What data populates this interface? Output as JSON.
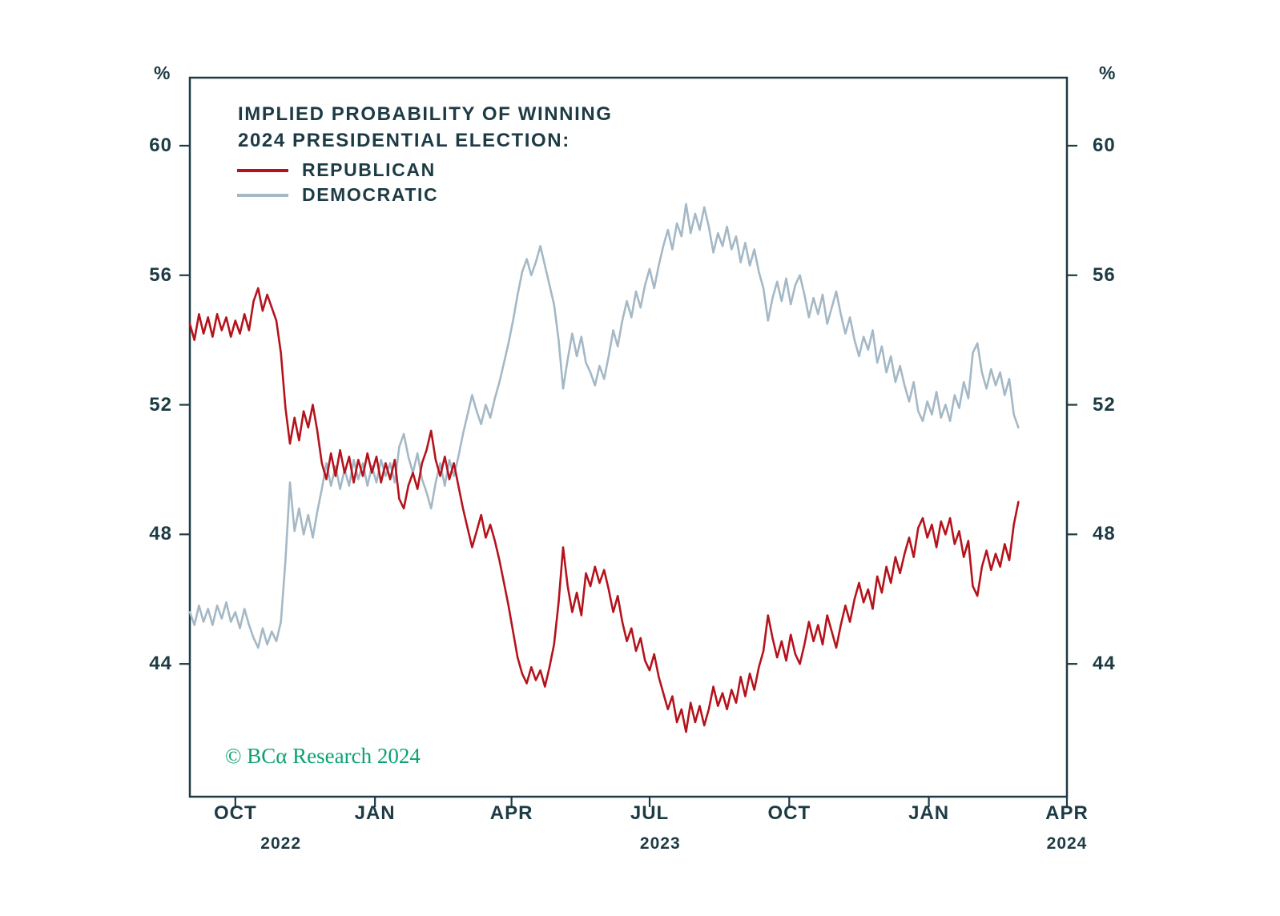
{
  "chart_data": {
    "type": "line",
    "title_line1": "IMPLIED PROBABILITY OF WINNING",
    "title_line2": "2024 PRESIDENTIAL ELECTION:",
    "percent_symbol": "%",
    "copyright": "© BCα Research 2024",
    "axis_color": "#1d3b44",
    "legend_position": "top-left-inside",
    "grid": false,
    "ylabel": "%",
    "ylim": [
      39.9,
      62.1
    ],
    "y_ticks": [
      60,
      56,
      52,
      48,
      44
    ],
    "xlim": [
      0,
      578
    ],
    "x_start": 0,
    "x_step": 3,
    "x_ticks": [
      {
        "label": "OCT",
        "day": 30
      },
      {
        "label": "JAN",
        "day": 122
      },
      {
        "label": "APR",
        "day": 212
      },
      {
        "label": "JUL",
        "day": 303
      },
      {
        "label": "OCT",
        "day": 395
      },
      {
        "label": "JAN",
        "day": 487
      },
      {
        "label": "APR",
        "day": 578
      }
    ],
    "year_labels": [
      {
        "label": "2022",
        "day": 60
      },
      {
        "label": "2023",
        "day": 310
      },
      {
        "label": "2024",
        "day": 578
      }
    ],
    "series": [
      {
        "name": "REPUBLICAN",
        "color": "#b5131c",
        "values": [
          54.5,
          54.0,
          54.8,
          54.2,
          54.7,
          54.1,
          54.8,
          54.3,
          54.7,
          54.1,
          54.6,
          54.2,
          54.8,
          54.3,
          55.2,
          55.6,
          54.9,
          55.4,
          55.0,
          54.6,
          53.6,
          51.9,
          50.8,
          51.6,
          50.9,
          51.8,
          51.3,
          52.0,
          51.2,
          50.2,
          49.7,
          50.5,
          49.8,
          50.6,
          49.9,
          50.4,
          49.6,
          50.3,
          49.8,
          50.5,
          49.9,
          50.4,
          49.6,
          50.2,
          49.7,
          50.3,
          49.1,
          48.8,
          49.5,
          49.9,
          49.4,
          50.2,
          50.6,
          51.2,
          50.3,
          49.8,
          50.4,
          49.7,
          50.2,
          49.5,
          48.8,
          48.2,
          47.6,
          48.1,
          48.6,
          47.9,
          48.3,
          47.8,
          47.2,
          46.5,
          45.8,
          45.0,
          44.2,
          43.7,
          43.4,
          43.9,
          43.5,
          43.8,
          43.3,
          43.9,
          44.6,
          45.9,
          47.6,
          46.4,
          45.6,
          46.2,
          45.5,
          46.8,
          46.4,
          47.0,
          46.5,
          46.9,
          46.3,
          45.6,
          46.1,
          45.3,
          44.7,
          45.1,
          44.4,
          44.8,
          44.1,
          43.8,
          44.3,
          43.6,
          43.1,
          42.6,
          43.0,
          42.2,
          42.6,
          41.9,
          42.8,
          42.2,
          42.7,
          42.1,
          42.6,
          43.3,
          42.7,
          43.1,
          42.6,
          43.2,
          42.8,
          43.6,
          43.0,
          43.7,
          43.2,
          43.9,
          44.4,
          45.5,
          44.8,
          44.2,
          44.7,
          44.1,
          44.9,
          44.3,
          44.0,
          44.6,
          45.3,
          44.7,
          45.2,
          44.6,
          45.5,
          45.0,
          44.5,
          45.2,
          45.8,
          45.3,
          46.0,
          46.5,
          45.9,
          46.3,
          45.7,
          46.7,
          46.2,
          47.0,
          46.5,
          47.3,
          46.8,
          47.4,
          47.9,
          47.3,
          48.2,
          48.5,
          47.9,
          48.3,
          47.6,
          48.4,
          48.0,
          48.5,
          47.7,
          48.1,
          47.3,
          47.8,
          46.4,
          46.1,
          47.0,
          47.5,
          46.9,
          47.4,
          47.0,
          47.7,
          47.2,
          48.3,
          49.0
        ]
      },
      {
        "name": "DEMOCRATIC",
        "color": "#a4b8c6",
        "values": [
          45.6,
          45.2,
          45.8,
          45.3,
          45.7,
          45.2,
          45.8,
          45.4,
          45.9,
          45.3,
          45.6,
          45.1,
          45.7,
          45.2,
          44.8,
          44.5,
          45.1,
          44.6,
          45.0,
          44.7,
          45.3,
          47.2,
          49.6,
          48.1,
          48.8,
          48.0,
          48.6,
          47.9,
          48.7,
          49.4,
          50.2,
          49.5,
          50.1,
          49.4,
          50.0,
          49.5,
          50.3,
          49.7,
          50.2,
          49.5,
          50.1,
          49.6,
          50.3,
          49.8,
          50.2,
          49.6,
          50.7,
          51.1,
          50.4,
          49.9,
          50.5,
          49.7,
          49.3,
          48.8,
          49.6,
          50.2,
          49.5,
          50.3,
          49.8,
          50.4,
          51.1,
          51.7,
          52.3,
          51.8,
          51.4,
          52.0,
          51.6,
          52.2,
          52.7,
          53.3,
          53.9,
          54.6,
          55.4,
          56.1,
          56.5,
          56.0,
          56.4,
          56.9,
          56.3,
          55.7,
          55.1,
          54.0,
          52.5,
          53.4,
          54.2,
          53.5,
          54.1,
          53.3,
          53.0,
          52.6,
          53.2,
          52.8,
          53.5,
          54.3,
          53.8,
          54.6,
          55.2,
          54.7,
          55.5,
          55.0,
          55.7,
          56.2,
          55.6,
          56.3,
          56.9,
          57.4,
          56.8,
          57.6,
          57.2,
          58.2,
          57.3,
          57.9,
          57.4,
          58.1,
          57.5,
          56.7,
          57.3,
          56.9,
          57.5,
          56.8,
          57.2,
          56.4,
          57.0,
          56.3,
          56.8,
          56.1,
          55.6,
          54.6,
          55.3,
          55.8,
          55.2,
          55.9,
          55.1,
          55.7,
          56.0,
          55.4,
          54.7,
          55.3,
          54.8,
          55.4,
          54.5,
          55.0,
          55.5,
          54.8,
          54.2,
          54.7,
          54.0,
          53.5,
          54.1,
          53.7,
          54.3,
          53.3,
          53.8,
          53.0,
          53.5,
          52.7,
          53.2,
          52.6,
          52.1,
          52.7,
          51.8,
          51.5,
          52.1,
          51.7,
          52.4,
          51.6,
          52.0,
          51.5,
          52.3,
          51.9,
          52.7,
          52.2,
          53.6,
          53.9,
          53.0,
          52.5,
          53.1,
          52.6,
          53.0,
          52.3,
          52.8,
          51.7,
          51.3
        ]
      }
    ]
  }
}
